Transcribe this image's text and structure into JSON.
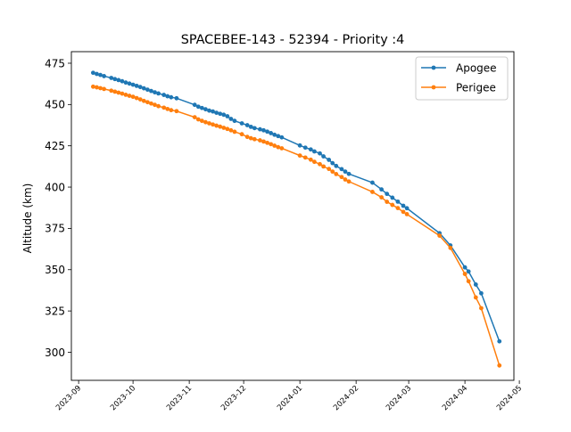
{
  "chart_data": {
    "type": "line",
    "title": "SPACEBEE-143 - 52394 - Priority :4",
    "xlabel": "",
    "ylabel": "Altitude (km)",
    "xlim": [
      "2023-08-28",
      "2024-04-28"
    ],
    "ylim": [
      283,
      482
    ],
    "grid": false,
    "legend_position": "top-right",
    "xticks": [
      {
        "date": "2023-09-01",
        "label": "2023-09"
      },
      {
        "date": "2023-10-01",
        "label": "2023-10"
      },
      {
        "date": "2023-11-01",
        "label": "2023-11"
      },
      {
        "date": "2023-12-01",
        "label": "2023-12"
      },
      {
        "date": "2024-01-01",
        "label": "2024-01"
      },
      {
        "date": "2024-02-01",
        "label": "2024-02"
      },
      {
        "date": "2024-03-01",
        "label": "2024-03"
      },
      {
        "date": "2024-04-01",
        "label": "2024-04"
      },
      {
        "date": "2024-05-01",
        "label": "2024-05"
      }
    ],
    "yticks": [
      {
        "value": 300,
        "label": "300"
      },
      {
        "value": 325,
        "label": "325"
      },
      {
        "value": 350,
        "label": "350"
      },
      {
        "value": 375,
        "label": "375"
      },
      {
        "value": 400,
        "label": "400"
      },
      {
        "value": 425,
        "label": "425"
      },
      {
        "value": 450,
        "label": "450"
      },
      {
        "value": 475,
        "label": "475"
      }
    ],
    "series": [
      {
        "name": "Apogee",
        "color": "#1f77b4",
        "points": [
          [
            "2023-09-09",
            469.2
          ],
          [
            "2023-09-11",
            468.5
          ],
          [
            "2023-09-13",
            467.9
          ],
          [
            "2023-09-15",
            467.2
          ],
          [
            "2023-09-19",
            466.1
          ],
          [
            "2023-09-21",
            465.4
          ],
          [
            "2023-09-23",
            464.8
          ],
          [
            "2023-09-25",
            464.1
          ],
          [
            "2023-09-27",
            463.3
          ],
          [
            "2023-09-29",
            462.7
          ],
          [
            "2023-10-01",
            462.0
          ],
          [
            "2023-10-03",
            461.3
          ],
          [
            "2023-10-05",
            460.6
          ],
          [
            "2023-10-07",
            459.8
          ],
          [
            "2023-10-09",
            459.0
          ],
          [
            "2023-10-11",
            458.2
          ],
          [
            "2023-10-13",
            457.4
          ],
          [
            "2023-10-15",
            456.7
          ],
          [
            "2023-10-18",
            455.8
          ],
          [
            "2023-10-20",
            455.0
          ],
          [
            "2023-10-22",
            454.4
          ],
          [
            "2023-10-25",
            453.8
          ],
          [
            "2023-11-04",
            449.8
          ],
          [
            "2023-11-06",
            448.7
          ],
          [
            "2023-11-08",
            447.9
          ],
          [
            "2023-11-10",
            447.1
          ],
          [
            "2023-11-12",
            446.3
          ],
          [
            "2023-11-14",
            445.8
          ],
          [
            "2023-11-16",
            445.0
          ],
          [
            "2023-11-18",
            444.4
          ],
          [
            "2023-11-20",
            443.8
          ],
          [
            "2023-11-22",
            442.9
          ],
          [
            "2023-11-24",
            441.3
          ],
          [
            "2023-11-26",
            440.1
          ],
          [
            "2023-11-30",
            438.6
          ],
          [
            "2023-12-03",
            437.5
          ],
          [
            "2023-12-05",
            436.5
          ],
          [
            "2023-12-07",
            435.7
          ],
          [
            "2023-12-10",
            435.0
          ],
          [
            "2023-12-12",
            434.4
          ],
          [
            "2023-12-14",
            433.6
          ],
          [
            "2023-12-16",
            432.7
          ],
          [
            "2023-12-18",
            431.7
          ],
          [
            "2023-12-20",
            430.9
          ],
          [
            "2023-12-22",
            430.1
          ],
          [
            "2024-01-01",
            425.2
          ],
          [
            "2024-01-04",
            423.9
          ],
          [
            "2024-01-07",
            422.8
          ],
          [
            "2024-01-09",
            421.6
          ],
          [
            "2024-01-12",
            420.4
          ],
          [
            "2024-01-14",
            418.6
          ],
          [
            "2024-01-17",
            416.5
          ],
          [
            "2024-01-19",
            414.5
          ],
          [
            "2024-01-21",
            412.8
          ],
          [
            "2024-01-24",
            410.9
          ],
          [
            "2024-01-26",
            409.4
          ],
          [
            "2024-01-28",
            408.0
          ],
          [
            "2024-02-10",
            402.7
          ],
          [
            "2024-02-15",
            398.6
          ],
          [
            "2024-02-18",
            395.9
          ],
          [
            "2024-02-21",
            393.6
          ],
          [
            "2024-02-24",
            391.2
          ],
          [
            "2024-02-27",
            388.7
          ],
          [
            "2024-02-29",
            387.2
          ],
          [
            "2024-03-18",
            372.1
          ],
          [
            "2024-03-24",
            364.7
          ],
          [
            "2024-04-01",
            351.4
          ],
          [
            "2024-04-03",
            348.9
          ],
          [
            "2024-04-07",
            341.0
          ],
          [
            "2024-04-10",
            335.7
          ],
          [
            "2024-04-20",
            306.6
          ]
        ]
      },
      {
        "name": "Perigee",
        "color": "#ff7f0e",
        "points": [
          [
            "2023-09-09",
            460.8
          ],
          [
            "2023-09-11",
            460.4
          ],
          [
            "2023-09-13",
            459.9
          ],
          [
            "2023-09-15",
            459.4
          ],
          [
            "2023-09-19",
            458.4
          ],
          [
            "2023-09-21",
            457.8
          ],
          [
            "2023-09-23",
            457.2
          ],
          [
            "2023-09-25",
            456.6
          ],
          [
            "2023-09-27",
            455.9
          ],
          [
            "2023-09-29",
            455.3
          ],
          [
            "2023-10-01",
            454.7
          ],
          [
            "2023-10-03",
            453.9
          ],
          [
            "2023-10-05",
            453.1
          ],
          [
            "2023-10-07",
            452.2
          ],
          [
            "2023-10-09",
            451.4
          ],
          [
            "2023-10-11",
            450.6
          ],
          [
            "2023-10-13",
            449.8
          ],
          [
            "2023-10-15",
            449.0
          ],
          [
            "2023-10-18",
            448.1
          ],
          [
            "2023-10-20",
            447.3
          ],
          [
            "2023-10-22",
            446.6
          ],
          [
            "2023-10-25",
            446.0
          ],
          [
            "2023-11-04",
            442.3
          ],
          [
            "2023-11-06",
            441.0
          ],
          [
            "2023-11-08",
            440.1
          ],
          [
            "2023-11-10",
            439.3
          ],
          [
            "2023-11-12",
            438.6
          ],
          [
            "2023-11-14",
            437.9
          ],
          [
            "2023-11-16",
            437.2
          ],
          [
            "2023-11-18",
            436.6
          ],
          [
            "2023-11-20",
            435.9
          ],
          [
            "2023-11-22",
            435.2
          ],
          [
            "2023-11-24",
            434.4
          ],
          [
            "2023-11-26",
            433.5
          ],
          [
            "2023-11-30",
            432.0
          ],
          [
            "2023-12-03",
            430.4
          ],
          [
            "2023-12-05",
            429.6
          ],
          [
            "2023-12-07",
            429.0
          ],
          [
            "2023-12-10",
            428.3
          ],
          [
            "2023-12-12",
            427.6
          ],
          [
            "2023-12-14",
            426.8
          ],
          [
            "2023-12-16",
            426.0
          ],
          [
            "2023-12-18",
            425.1
          ],
          [
            "2023-12-20",
            424.2
          ],
          [
            "2023-12-22",
            423.5
          ],
          [
            "2024-01-01",
            419.1
          ],
          [
            "2024-01-04",
            417.9
          ],
          [
            "2024-01-07",
            416.6
          ],
          [
            "2024-01-09",
            415.3
          ],
          [
            "2024-01-12",
            413.9
          ],
          [
            "2024-01-14",
            412.5
          ],
          [
            "2024-01-17",
            411.0
          ],
          [
            "2024-01-19",
            409.4
          ],
          [
            "2024-01-21",
            407.9
          ],
          [
            "2024-01-24",
            406.1
          ],
          [
            "2024-01-26",
            404.6
          ],
          [
            "2024-01-28",
            403.4
          ],
          [
            "2024-02-10",
            397.1
          ],
          [
            "2024-02-15",
            393.8
          ],
          [
            "2024-02-18",
            391.1
          ],
          [
            "2024-02-21",
            389.2
          ],
          [
            "2024-02-24",
            387.3
          ],
          [
            "2024-02-27",
            385.0
          ],
          [
            "2024-02-29",
            383.6
          ],
          [
            "2024-03-18",
            370.6
          ],
          [
            "2024-03-24",
            363.2
          ],
          [
            "2024-04-01",
            347.4
          ],
          [
            "2024-04-03",
            343.0
          ],
          [
            "2024-04-07",
            333.2
          ],
          [
            "2024-04-10",
            326.7
          ],
          [
            "2024-04-20",
            292.0
          ]
        ]
      }
    ]
  }
}
